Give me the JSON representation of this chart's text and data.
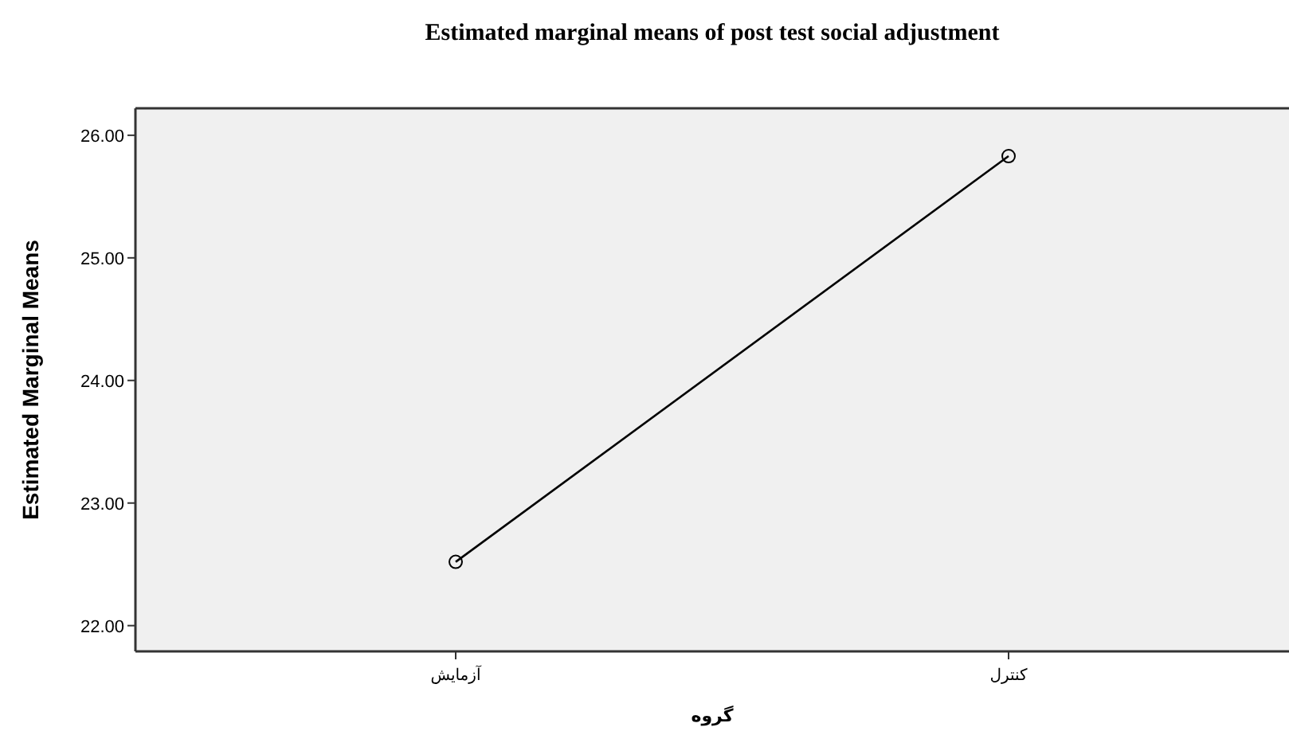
{
  "chart_data": {
    "type": "line",
    "title": "Estimated marginal means of post test social adjustment",
    "xlabel": "گروه",
    "ylabel": "Estimated Marginal Means",
    "categories": [
      "آزمایش",
      "کنترل"
    ],
    "series": [
      {
        "color": "#000000",
        "values": [
          22.52,
          25.83
        ]
      }
    ],
    "ylim": [
      21.79,
      26.22
    ],
    "yticks": [
      {
        "value": 22,
        "label": "22.00"
      },
      {
        "value": 23,
        "label": "23.00"
      },
      {
        "value": 24,
        "label": "24.00"
      },
      {
        "value": 25,
        "label": "25.00"
      },
      {
        "value": 26,
        "label": "26.00"
      }
    ],
    "marker": "circle",
    "line_style": "solid"
  }
}
